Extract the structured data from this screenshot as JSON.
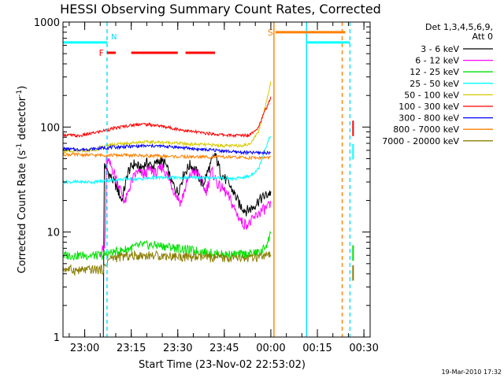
{
  "chart_data": {
    "type": "line",
    "title": "HESSI Observing Summary Count Rates, Corrected",
    "xlabel": "Start Time (23-Nov-02 22:53:02)",
    "ylabel_main": "Corrected Count Rate (s",
    "ylabel_sup1": "-1",
    "ylabel_mid": " detector",
    "ylabel_sup2": "-1",
    "ylabel_end": ")",
    "y_scale": "log",
    "ylim": [
      1,
      1000
    ],
    "xlim_minutes_after_2253": [
      0,
      99
    ],
    "x_ticks": [
      {
        "label": "23:00",
        "min": 7
      },
      {
        "label": "23:15",
        "min": 22
      },
      {
        "label": "23:30",
        "min": 37
      },
      {
        "label": "23:45",
        "min": 52
      },
      {
        "label": "00:00",
        "min": 67
      },
      {
        "label": "00:15",
        "min": 82
      },
      {
        "label": "00:30",
        "min": 97
      }
    ],
    "y_ticks": [
      {
        "label": "1",
        "value": 1
      },
      {
        "label": "10",
        "value": 10
      },
      {
        "label": "100",
        "value": 100
      },
      {
        "label": "1000",
        "value": 1000
      }
    ],
    "legend_title_1": "Det 1,3,4,5,6,9,",
    "legend_title_2": "Att 0",
    "legend_placement": "right",
    "series": [
      {
        "name": "3 - 6 keV",
        "color": "#000000",
        "points": [
          [
            13,
            1
          ],
          [
            13.3,
            45
          ],
          [
            15,
            35
          ],
          [
            17,
            28
          ],
          [
            19,
            20
          ],
          [
            21,
            38
          ],
          [
            23,
            45
          ],
          [
            25,
            40
          ],
          [
            27,
            46
          ],
          [
            29,
            42
          ],
          [
            31,
            48
          ],
          [
            33,
            45
          ],
          [
            35,
            30
          ],
          [
            37,
            24
          ],
          [
            39,
            36
          ],
          [
            41,
            44
          ],
          [
            43,
            38
          ],
          [
            45,
            28
          ],
          [
            47,
            40
          ],
          [
            49,
            55
          ],
          [
            51,
            36
          ],
          [
            53,
            30
          ],
          [
            55,
            24
          ],
          [
            57,
            18
          ],
          [
            59,
            16
          ],
          [
            61,
            17
          ],
          [
            63,
            20
          ],
          [
            65,
            22
          ],
          [
            67,
            24
          ]
        ]
      },
      {
        "name": "6 - 12 keV",
        "color": "#ff00ff",
        "points": [
          [
            12,
            6.5
          ],
          [
            13.5,
            7
          ],
          [
            14,
            50
          ],
          [
            16,
            40
          ],
          [
            18,
            28
          ],
          [
            20,
            19
          ],
          [
            22,
            30
          ],
          [
            24,
            38
          ],
          [
            26,
            35
          ],
          [
            28,
            40
          ],
          [
            30,
            36
          ],
          [
            32,
            42
          ],
          [
            34,
            33
          ],
          [
            36,
            24
          ],
          [
            38,
            19
          ],
          [
            40,
            30
          ],
          [
            42,
            38
          ],
          [
            44,
            35
          ],
          [
            46,
            24
          ],
          [
            48,
            38
          ],
          [
            50,
            28
          ],
          [
            52,
            25
          ],
          [
            54,
            20
          ],
          [
            56,
            15
          ],
          [
            58,
            12
          ],
          [
            60,
            12
          ],
          [
            62,
            14
          ],
          [
            64,
            16
          ],
          [
            67,
            18
          ]
        ]
      },
      {
        "name": "12 - 25 keV",
        "color": "#00e000",
        "points": [
          [
            0,
            6
          ],
          [
            5,
            6
          ],
          [
            10,
            6
          ],
          [
            13,
            6
          ],
          [
            15,
            6.3
          ],
          [
            20,
            6.8
          ],
          [
            25,
            7.5
          ],
          [
            30,
            7.5
          ],
          [
            35,
            7.2
          ],
          [
            40,
            6.8
          ],
          [
            45,
            6.5
          ],
          [
            50,
            6.2
          ],
          [
            55,
            6.1
          ],
          [
            60,
            6.2
          ],
          [
            64,
            6.5
          ],
          [
            66,
            8
          ],
          [
            67,
            10
          ]
        ]
      },
      {
        "name": "25 - 50 keV",
        "color": "#00ffff",
        "points": [
          [
            0,
            30
          ],
          [
            5,
            30
          ],
          [
            10,
            30
          ],
          [
            15,
            31
          ],
          [
            20,
            32
          ],
          [
            25,
            32
          ],
          [
            30,
            33
          ],
          [
            35,
            33
          ],
          [
            40,
            33
          ],
          [
            45,
            33
          ],
          [
            50,
            33
          ],
          [
            55,
            32
          ],
          [
            60,
            34
          ],
          [
            63,
            40
          ],
          [
            65,
            60
          ],
          [
            67,
            85
          ]
        ]
      },
      {
        "name": "50 - 100 keV",
        "color": "#d8c800",
        "points": [
          [
            0,
            58
          ],
          [
            10,
            60
          ],
          [
            15,
            68
          ],
          [
            20,
            70
          ],
          [
            25,
            72
          ],
          [
            30,
            72
          ],
          [
            35,
            71
          ],
          [
            40,
            69
          ],
          [
            45,
            68
          ],
          [
            50,
            67
          ],
          [
            55,
            66
          ],
          [
            60,
            68
          ],
          [
            63,
            90
          ],
          [
            65,
            150
          ],
          [
            67,
            270
          ]
        ]
      },
      {
        "name": "100 - 300 keV",
        "color": "#ff0000",
        "points": [
          [
            0,
            85
          ],
          [
            5,
            82
          ],
          [
            10,
            88
          ],
          [
            15,
            95
          ],
          [
            20,
            102
          ],
          [
            25,
            107
          ],
          [
            30,
            104
          ],
          [
            35,
            98
          ],
          [
            40,
            92
          ],
          [
            45,
            88
          ],
          [
            50,
            85
          ],
          [
            55,
            83
          ],
          [
            60,
            84
          ],
          [
            63,
            100
          ],
          [
            65,
            140
          ],
          [
            67,
            190
          ]
        ]
      },
      {
        "name": "300 - 800 keV",
        "color": "#0000ff",
        "points": [
          [
            0,
            62
          ],
          [
            5,
            61
          ],
          [
            10,
            62
          ],
          [
            15,
            64
          ],
          [
            20,
            65
          ],
          [
            25,
            66
          ],
          [
            30,
            66
          ],
          [
            35,
            65
          ],
          [
            40,
            63
          ],
          [
            45,
            61
          ],
          [
            50,
            60
          ],
          [
            55,
            58
          ],
          [
            60,
            57
          ],
          [
            64,
            57
          ],
          [
            67,
            57
          ]
        ]
      },
      {
        "name": "800 - 7000 keV",
        "color": "#ff8000",
        "points": [
          [
            0,
            55
          ],
          [
            10,
            54
          ],
          [
            20,
            54
          ],
          [
            30,
            53
          ],
          [
            40,
            52
          ],
          [
            50,
            52
          ],
          [
            60,
            51
          ],
          [
            67,
            51
          ]
        ]
      },
      {
        "name": "7000 - 20000 keV",
        "color": "#8b7d00",
        "points": [
          [
            0,
            4.5
          ],
          [
            5,
            4.3
          ],
          [
            10,
            4.4
          ],
          [
            13,
            4.4
          ],
          [
            15,
            5.6
          ],
          [
            20,
            5.9
          ],
          [
            25,
            6.0
          ],
          [
            30,
            6.0
          ],
          [
            35,
            5.9
          ],
          [
            40,
            5.8
          ],
          [
            45,
            5.7
          ],
          [
            50,
            5.7
          ],
          [
            55,
            5.6
          ],
          [
            60,
            5.6
          ],
          [
            64,
            5.8
          ],
          [
            67,
            6
          ]
        ]
      }
    ],
    "right_segment_values": [
      {
        "color": "#ff0000",
        "value": 100
      },
      {
        "color": "#00ffff",
        "value": 60
      },
      {
        "color": "#00e000",
        "value": 6.5
      },
      {
        "color": "#8b7d00",
        "value": 4.2
      }
    ],
    "markers": [
      {
        "label": "N",
        "color": "#00e0ff",
        "min": 14.2,
        "style": "dashed"
      },
      {
        "label": "",
        "color": "#ff8000",
        "min": 68,
        "style": "solid"
      },
      {
        "label": "",
        "color": "#00e0ff",
        "min": 78.5,
        "style": "solid"
      },
      {
        "label": "",
        "color": "#ff8000",
        "min": 90,
        "style": "dashed"
      },
      {
        "label": "",
        "color": "#00e0ff",
        "min": 92.5,
        "style": "dashed"
      }
    ],
    "top_bars": [
      {
        "label": "",
        "color": "#00ffff",
        "start": 0,
        "end": 14.2,
        "value": 640
      },
      {
        "label": "",
        "color": "#00ffff",
        "start": 78.5,
        "end": 92.5,
        "value": 640
      },
      {
        "label": "S",
        "color": "#ff8000",
        "start": 68.5,
        "end": 91,
        "value": 800
      }
    ],
    "flare_bars": {
      "label": "F",
      "color": "#ff0000",
      "value": 510,
      "segments": [
        [
          14.2,
          17
        ],
        [
          22,
          37
        ],
        [
          39.5,
          49
        ]
      ]
    },
    "footer_timestamp": "19-Mar-2010 17:32"
  }
}
